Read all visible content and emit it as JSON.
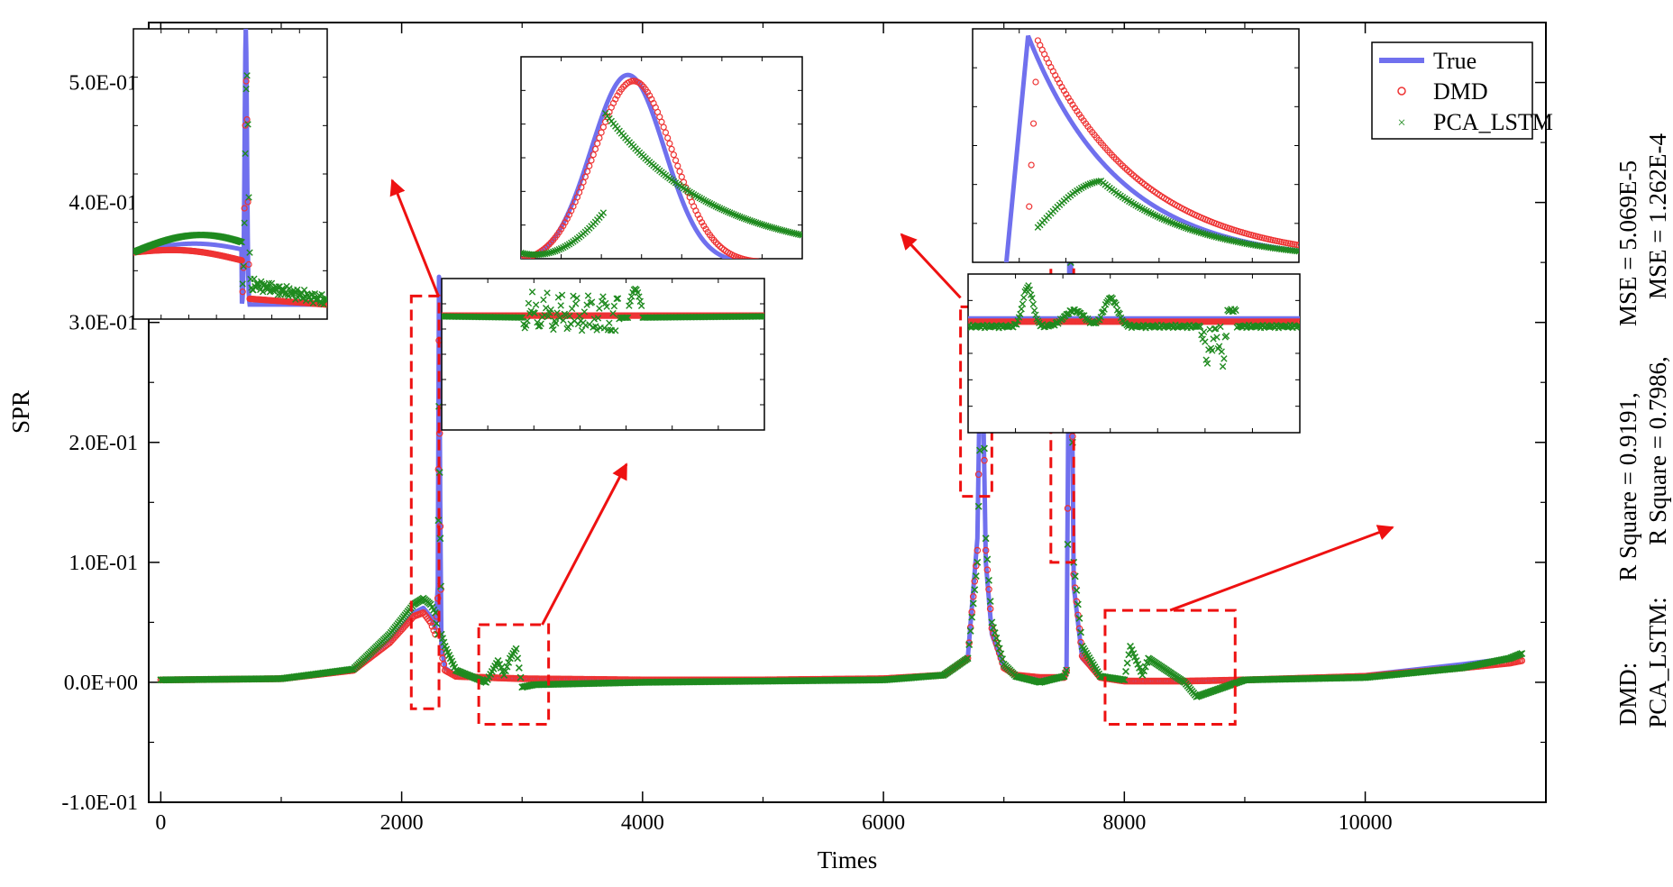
{
  "chart_data": {
    "type": "line",
    "title": "",
    "xlabel": "Times",
    "ylabel": "SPR",
    "xlim": [
      -100,
      11500
    ],
    "ylim": [
      -0.1,
      0.55
    ],
    "xticks": [
      "0",
      "2000",
      "4000",
      "6000",
      "8000",
      "10000"
    ],
    "yticks": [
      "-1.0E-01",
      "0.0E+00",
      "1.0E-01",
      "2.0E-01",
      "3.0E-01",
      "4.0E-01",
      "5.0E-01"
    ],
    "legend": {
      "position": "top-right",
      "entries": [
        "True",
        "DMD",
        "PCA_LSTM"
      ]
    },
    "series": [
      {
        "name": "True",
        "color": "#7070ee",
        "style": "line",
        "x": [
          0,
          1000,
          1600,
          1900,
          2100,
          2180,
          2240,
          2280,
          2300,
          2310,
          2320,
          2330,
          2360,
          2450,
          2700,
          3000,
          4000,
          5000,
          6000,
          6500,
          6700,
          6780,
          6810,
          6825,
          6850,
          6900,
          7000,
          7100,
          7300,
          7500,
          7520,
          7540,
          7550,
          7560,
          7580,
          7650,
          7800,
          8000,
          8500,
          9000,
          10000,
          10800,
          11200,
          11300
        ],
        "y": [
          0.002,
          0.003,
          0.01,
          0.035,
          0.058,
          0.062,
          0.055,
          0.045,
          0.08,
          0.338,
          0.15,
          0.03,
          0.012,
          0.006,
          0.004,
          0.003,
          0.002,
          0.002,
          0.003,
          0.006,
          0.02,
          0.12,
          0.31,
          0.25,
          0.1,
          0.04,
          0.012,
          0.006,
          0.004,
          0.004,
          0.01,
          0.3,
          0.473,
          0.3,
          0.08,
          0.02,
          0.004,
          0.002,
          0.001,
          0.002,
          0.006,
          0.015,
          0.02,
          0.022
        ]
      },
      {
        "name": "DMD",
        "color": "#ee3333",
        "style": "circle",
        "x": [
          0,
          1000,
          1600,
          1900,
          2100,
          2180,
          2240,
          2280,
          2300,
          2310,
          2320,
          2330,
          2360,
          2450,
          2700,
          3000,
          4000,
          5000,
          6000,
          6500,
          6700,
          6780,
          6810,
          6825,
          6850,
          6900,
          7000,
          7100,
          7300,
          7500,
          7520,
          7540,
          7550,
          7560,
          7580,
          7650,
          7800,
          8000,
          8500,
          9000,
          10000,
          10800,
          11200,
          11300
        ],
        "y": [
          0.002,
          0.003,
          0.01,
          0.033,
          0.055,
          0.058,
          0.05,
          0.04,
          0.07,
          0.285,
          0.13,
          0.025,
          0.01,
          0.005,
          0.004,
          0.003,
          0.002,
          0.002,
          0.003,
          0.006,
          0.02,
          0.11,
          0.3,
          0.26,
          0.11,
          0.045,
          0.012,
          0.006,
          0.004,
          0.004,
          0.01,
          0.28,
          0.45,
          0.32,
          0.09,
          0.022,
          0.004,
          0.001,
          0.001,
          0.002,
          0.005,
          0.012,
          0.016,
          0.018
        ]
      },
      {
        "name": "PCA_LSTM",
        "color": "#1f8a1f",
        "style": "x",
        "x": [
          0,
          1000,
          1600,
          1900,
          2100,
          2180,
          2240,
          2280,
          2300,
          2310,
          2320,
          2330,
          2360,
          2450,
          2700,
          2800,
          2850,
          2900,
          2950,
          3000,
          3100,
          4000,
          5000,
          6000,
          6500,
          6700,
          6780,
          6810,
          6825,
          6850,
          6900,
          7000,
          7100,
          7300,
          7500,
          7520,
          7540,
          7550,
          7560,
          7580,
          7650,
          7800,
          8000,
          8050,
          8150,
          8200,
          8500,
          8600,
          9000,
          10000,
          10800,
          11200,
          11300
        ],
        "y": [
          0.002,
          0.003,
          0.011,
          0.04,
          0.065,
          0.07,
          0.065,
          0.058,
          0.04,
          0.23,
          0.12,
          0.04,
          0.03,
          0.01,
          0.0,
          0.018,
          0.006,
          0.02,
          0.028,
          -0.004,
          -0.002,
          0.0,
          0.001,
          0.002,
          0.006,
          0.02,
          0.1,
          0.24,
          0.27,
          0.12,
          0.05,
          0.015,
          0.005,
          0.0,
          0.005,
          0.01,
          0.22,
          0.4,
          0.3,
          0.1,
          0.03,
          0.005,
          0.002,
          0.03,
          0.006,
          0.02,
          0.0,
          -0.012,
          0.002,
          0.004,
          0.012,
          0.02,
          0.024
        ]
      }
    ],
    "annotations": {
      "dmd": {
        "label": "DMD:",
        "r2": "R Square = 0.9191,",
        "mse": "MSE = 5.069E-5"
      },
      "pca": {
        "label": "PCA_LSTM:",
        "r2": "R Square = 0.7986,",
        "mse": "MSE = 1.262E-4"
      }
    },
    "insets": [
      {
        "name": "inset-peak-2300",
        "source_x": [
          2080,
          2310
        ]
      },
      {
        "name": "inset-noise-3000",
        "source_x": [
          2640,
          3220
        ]
      },
      {
        "name": "inset-peak-6800",
        "source_x": [
          6640,
          6900
        ]
      },
      {
        "name": "inset-peak-7550",
        "source_x": [
          7390,
          7580
        ]
      },
      {
        "name": "inset-noise-8500",
        "source_x": [
          7840,
          8920
        ]
      }
    ]
  }
}
